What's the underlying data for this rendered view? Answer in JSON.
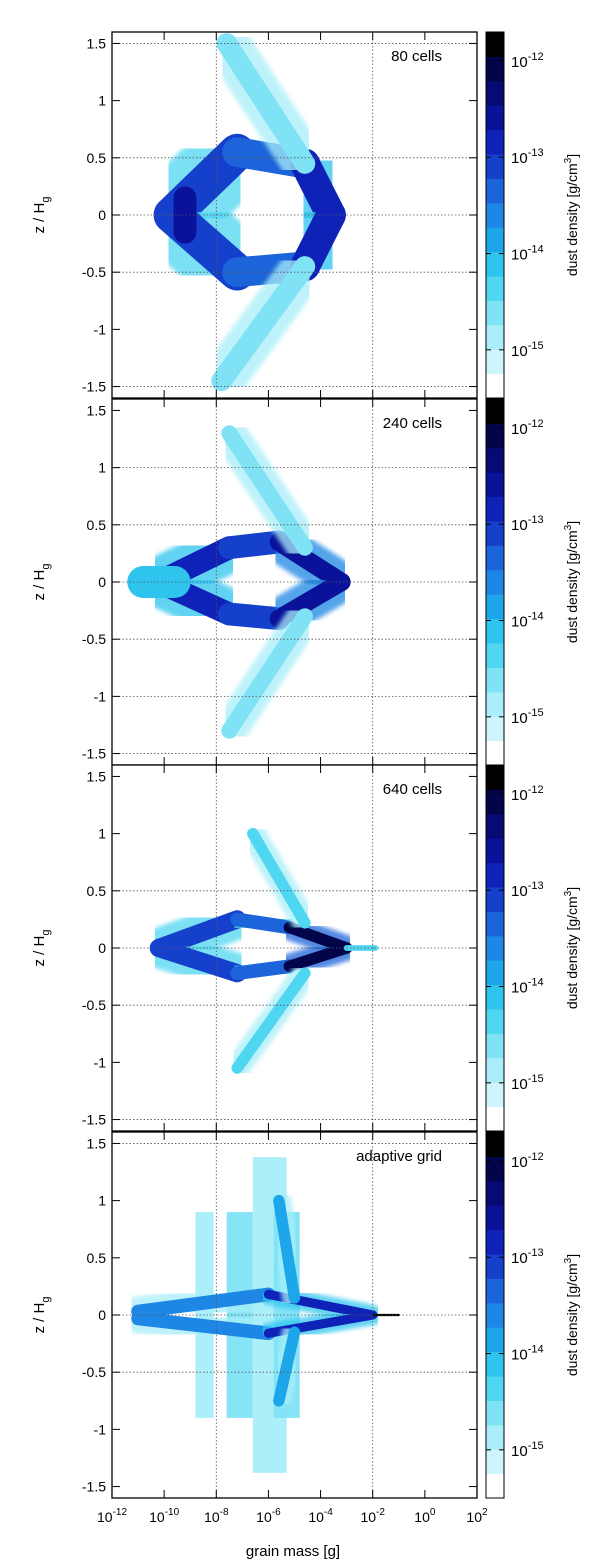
{
  "figure": {
    "xlabel": "grain mass [g]",
    "ylabel": "z / H",
    "ylabel_sub": "g",
    "colorbar_label_main": "dust density [g/cm",
    "colorbar_label_exp": "3",
    "colorbar_label_close": "]"
  },
  "colors": {
    "scale": [
      "#ffffff",
      "#cdf5fb",
      "#a9eef9",
      "#7fe3f5",
      "#4fd6f0",
      "#2ec4ee",
      "#1ea6ea",
      "#1e86e4",
      "#1b64da",
      "#1540cc",
      "#0f22b8",
      "#0a129a",
      "#060a72",
      "#03054a",
      "#000000"
    ]
  },
  "chart_data": [
    {
      "type": "heatmap",
      "annotation": "80 cells",
      "x_scale": "log",
      "x_range_log10": [
        -12,
        2
      ],
      "ylim": [
        -1.6,
        1.6
      ],
      "y_ticks": [
        "-1.5",
        "-1",
        "-0.5",
        "0",
        "0.5",
        "1",
        "1.5"
      ],
      "x_ticks_log10": [
        -12,
        -10,
        -8,
        -6,
        -4,
        -2,
        0,
        2
      ],
      "gridlines_x_log10": [
        -8,
        -2
      ],
      "gridlines_y": [
        -1.5,
        -0.5,
        0,
        0.5,
        1.5
      ],
      "colorbar_ticks": [
        {
          "mant": "10",
          "exp": "-12",
          "value": -12
        },
        {
          "mant": "10",
          "exp": "-13",
          "value": -13
        },
        {
          "mant": "10",
          "exp": "-14",
          "value": -14
        },
        {
          "mant": "10",
          "exp": "-15",
          "value": -15
        }
      ],
      "colorbar_range_log10": [
        -15.5,
        -11.7
      ],
      "features": [
        {
          "kind": "arm",
          "x0": -9.7,
          "y0": 0,
          "x1": -7.2,
          "y1": 0.55,
          "w": 0.16,
          "v": 0.62
        },
        {
          "kind": "arm",
          "x0": -9.7,
          "y0": 0,
          "x1": -7.2,
          "y1": -0.5,
          "w": 0.16,
          "v": 0.62
        },
        {
          "kind": "arm",
          "x0": -7.2,
          "y0": 0.55,
          "x1": -4.6,
          "y1": 0.45,
          "w": 0.13,
          "v": 0.55
        },
        {
          "kind": "arm",
          "x0": -7.2,
          "y0": -0.5,
          "x1": -4.6,
          "y1": -0.45,
          "w": 0.13,
          "v": 0.55
        },
        {
          "kind": "arm",
          "x0": -4.6,
          "y0": 0.45,
          "x1": -3.6,
          "y1": 0,
          "w": 0.13,
          "v": 0.72
        },
        {
          "kind": "arm",
          "x0": -4.6,
          "y0": -0.45,
          "x1": -3.6,
          "y1": 0,
          "w": 0.13,
          "v": 0.72
        },
        {
          "kind": "arm",
          "x0": -4.6,
          "y0": 0.45,
          "x1": -7.6,
          "y1": 1.5,
          "w": 0.09,
          "v": 0.22
        },
        {
          "kind": "arm",
          "x0": -4.6,
          "y0": -0.45,
          "x1": -7.8,
          "y1": -1.45,
          "w": 0.09,
          "v": 0.22
        },
        {
          "kind": "arm",
          "x0": -9.2,
          "y0": 0.15,
          "x1": -9.2,
          "y1": -0.15,
          "w": 0.1,
          "v": 0.8
        }
      ]
    },
    {
      "type": "heatmap",
      "annotation": "240 cells",
      "x_scale": "log",
      "x_range_log10": [
        -12,
        2
      ],
      "ylim": [
        -1.6,
        1.6
      ],
      "y_ticks": [
        "-1.5",
        "-1",
        "-0.5",
        "0",
        "0.5",
        "1",
        "1.5"
      ],
      "x_ticks_log10": [
        -12,
        -10,
        -8,
        -6,
        -4,
        -2,
        0,
        2
      ],
      "gridlines_x_log10": [
        -8,
        -2
      ],
      "gridlines_y": [
        -1.5,
        -1,
        -0.5,
        0,
        0.5,
        1
      ],
      "colorbar_ticks": [
        {
          "mant": "10",
          "exp": "-12",
          "value": -12
        },
        {
          "mant": "10",
          "exp": "-13",
          "value": -13
        },
        {
          "mant": "10",
          "exp": "-14",
          "value": -14
        },
        {
          "mant": "10",
          "exp": "-15",
          "value": -15
        }
      ],
      "colorbar_range_log10": [
        -15.5,
        -11.7
      ],
      "features": [
        {
          "kind": "arm",
          "x0": -10.2,
          "y0": 0,
          "x1": -7.5,
          "y1": 0.3,
          "w": 0.1,
          "v": 0.7
        },
        {
          "kind": "arm",
          "x0": -10.2,
          "y0": 0,
          "x1": -7.5,
          "y1": -0.28,
          "w": 0.1,
          "v": 0.7
        },
        {
          "kind": "arm",
          "x0": -7.5,
          "y0": 0.3,
          "x1": -5.6,
          "y1": 0.35,
          "w": 0.1,
          "v": 0.62
        },
        {
          "kind": "arm",
          "x0": -7.5,
          "y0": -0.28,
          "x1": -5.6,
          "y1": -0.32,
          "w": 0.1,
          "v": 0.62
        },
        {
          "kind": "arm",
          "x0": -5.6,
          "y0": 0.35,
          "x1": -3.2,
          "y1": 0,
          "w": 0.08,
          "v": 0.82
        },
        {
          "kind": "arm",
          "x0": -5.6,
          "y0": -0.32,
          "x1": -3.2,
          "y1": 0,
          "w": 0.08,
          "v": 0.82
        },
        {
          "kind": "arm",
          "x0": -4.6,
          "y0": 0.3,
          "x1": -7.5,
          "y1": 1.3,
          "w": 0.07,
          "v": 0.24
        },
        {
          "kind": "arm",
          "x0": -4.6,
          "y0": -0.3,
          "x1": -7.5,
          "y1": -1.3,
          "w": 0.07,
          "v": 0.24
        },
        {
          "kind": "arm",
          "x0": -10.8,
          "y0": 0,
          "x1": -9.6,
          "y1": 0,
          "w": 0.14,
          "v": 0.35
        }
      ]
    },
    {
      "type": "heatmap",
      "annotation": "640 cells",
      "x_scale": "log",
      "x_range_log10": [
        -12,
        2
      ],
      "ylim": [
        -1.6,
        1.6
      ],
      "y_ticks": [
        "-1.5",
        "-1",
        "-0.5",
        "0",
        "0.5",
        "1",
        "1.5"
      ],
      "x_ticks_log10": [
        -12,
        -10,
        -8,
        -6,
        -4,
        -2,
        0,
        2
      ],
      "gridlines_x_log10": [
        -8,
        -2
      ],
      "gridlines_y": [
        -1.5,
        -0.5,
        0,
        0.5
      ],
      "colorbar_ticks": [
        {
          "mant": "10",
          "exp": "-12",
          "value": -12
        },
        {
          "mant": "10",
          "exp": "-13",
          "value": -13
        },
        {
          "mant": "10",
          "exp": "-14",
          "value": -14
        },
        {
          "mant": "10",
          "exp": "-15",
          "value": -15
        }
      ],
      "colorbar_range_log10": [
        -15.5,
        -11.7
      ],
      "features": [
        {
          "kind": "arm",
          "x0": -10.2,
          "y0": 0,
          "x1": -7.2,
          "y1": 0.25,
          "w": 0.08,
          "v": 0.62
        },
        {
          "kind": "arm",
          "x0": -10.2,
          "y0": 0,
          "x1": -7.2,
          "y1": -0.22,
          "w": 0.08,
          "v": 0.62
        },
        {
          "kind": "arm",
          "x0": -7.2,
          "y0": 0.25,
          "x1": -5.2,
          "y1": 0.18,
          "w": 0.06,
          "v": 0.6
        },
        {
          "kind": "arm",
          "x0": -7.2,
          "y0": -0.22,
          "x1": -5.2,
          "y1": -0.16,
          "w": 0.06,
          "v": 0.6
        },
        {
          "kind": "arm",
          "x0": -5.2,
          "y0": 0.18,
          "x1": -3.0,
          "y1": 0,
          "w": 0.05,
          "v": 0.92
        },
        {
          "kind": "arm",
          "x0": -5.2,
          "y0": -0.16,
          "x1": -3.0,
          "y1": 0,
          "w": 0.05,
          "v": 0.92
        },
        {
          "kind": "arm",
          "x0": -3.0,
          "y0": 0,
          "x1": -1.9,
          "y1": 0,
          "w": 0.025,
          "v": 0.3
        },
        {
          "kind": "arm",
          "x0": -4.6,
          "y0": 0.22,
          "x1": -6.6,
          "y1": 1.0,
          "w": 0.05,
          "v": 0.25
        },
        {
          "kind": "arm",
          "x0": -4.6,
          "y0": -0.22,
          "x1": -7.2,
          "y1": -1.05,
          "w": 0.05,
          "v": 0.25
        }
      ]
    },
    {
      "type": "heatmap",
      "annotation": "adaptive grid",
      "x_scale": "log",
      "x_range_log10": [
        -12,
        2
      ],
      "ylim": [
        -1.6,
        1.6
      ],
      "y_ticks": [
        "-1.5",
        "-1",
        "-0.5",
        "0",
        "0.5",
        "1",
        "1.5"
      ],
      "x_ticks_log10": [
        -12,
        -10,
        -8,
        -6,
        -4,
        -2,
        0,
        2
      ],
      "gridlines_x_log10": [
        -8,
        -2
      ],
      "gridlines_y": [
        -0.5,
        0,
        1.5
      ],
      "colorbar_ticks": [
        {
          "mant": "10",
          "exp": "-12",
          "value": -12
        },
        {
          "mant": "10",
          "exp": "-13",
          "value": -13
        },
        {
          "mant": "10",
          "exp": "-14",
          "value": -14
        },
        {
          "mant": "10",
          "exp": "-15",
          "value": -15
        }
      ],
      "colorbar_range_log10": [
        -15.5,
        -11.7
      ],
      "features": [
        {
          "kind": "block",
          "x0": -8.8,
          "x1": -8.1,
          "y0": -0.9,
          "y1": 0.9,
          "v": 0.15
        },
        {
          "kind": "block",
          "x0": -7.6,
          "x1": -6.6,
          "y0": -0.9,
          "y1": 0.9,
          "v": 0.18
        },
        {
          "kind": "block",
          "x0": -6.6,
          "x1": -5.3,
          "y0": -1.38,
          "y1": 1.38,
          "v": 0.16
        },
        {
          "kind": "block",
          "x0": -5.8,
          "x1": -4.8,
          "y0": -0.9,
          "y1": 0.9,
          "v": 0.22
        },
        {
          "kind": "arm",
          "x0": -11.0,
          "y0": 0.03,
          "x1": -6.0,
          "y1": 0.18,
          "w": 0.06,
          "v": 0.5
        },
        {
          "kind": "arm",
          "x0": -11.0,
          "y0": -0.03,
          "x1": -6.0,
          "y1": -0.16,
          "w": 0.06,
          "v": 0.5
        },
        {
          "kind": "arm",
          "x0": -6.0,
          "y0": 0.18,
          "x1": -2.0,
          "y1": 0,
          "w": 0.04,
          "v": 0.72
        },
        {
          "kind": "arm",
          "x0": -6.0,
          "y0": -0.16,
          "x1": -2.0,
          "y1": 0,
          "w": 0.04,
          "v": 0.72
        },
        {
          "kind": "arm",
          "x0": -2.0,
          "y0": 0,
          "x1": -1.0,
          "y1": 0,
          "w": 0.01,
          "v": 1.0
        },
        {
          "kind": "arm",
          "x0": -5.0,
          "y0": 0.15,
          "x1": -5.6,
          "y1": 1.0,
          "w": 0.05,
          "v": 0.4
        },
        {
          "kind": "arm",
          "x0": -5.0,
          "y0": -0.15,
          "x1": -5.6,
          "y1": -0.75,
          "w": 0.05,
          "v": 0.4
        }
      ]
    }
  ]
}
